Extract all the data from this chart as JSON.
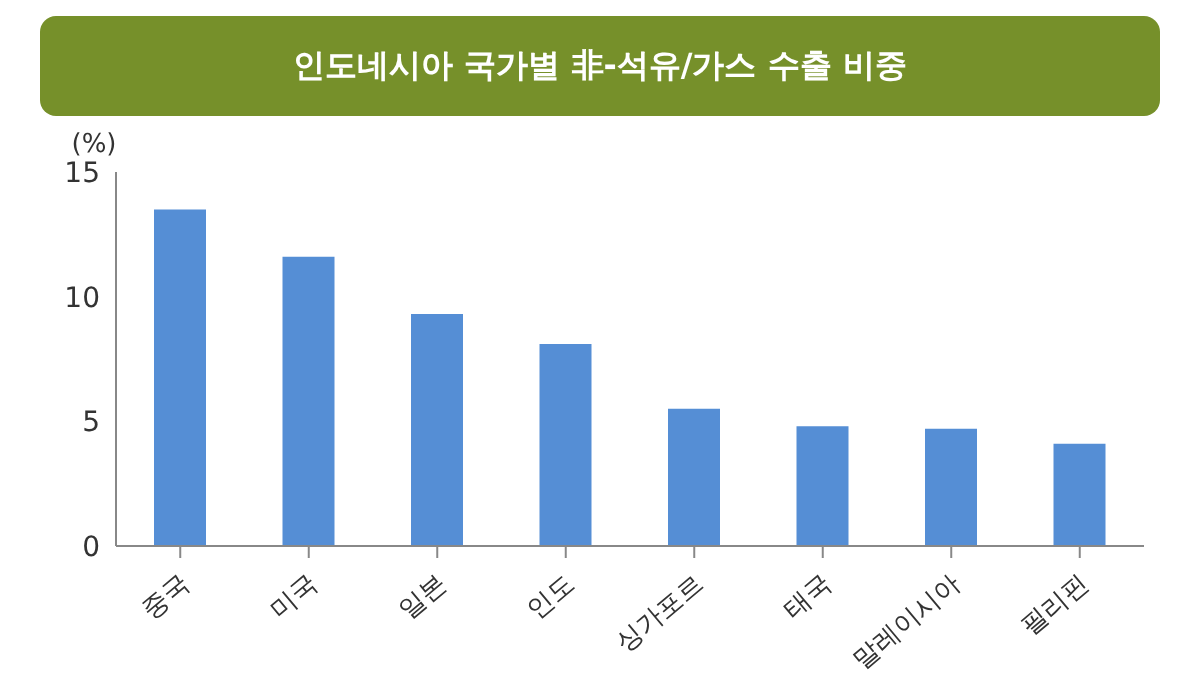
{
  "chart_data": {
    "type": "bar",
    "title": "인도네시아 국가별 非-석유/가스 수출 비중",
    "ylabel": "(%)",
    "categories": [
      "중국",
      "미국",
      "일본",
      "인도",
      "싱가포르",
      "태국",
      "말레이시아",
      "필리핀"
    ],
    "values": [
      13.5,
      11.6,
      9.3,
      8.1,
      5.5,
      4.8,
      4.7,
      4.1
    ],
    "color": "#558ed5",
    "ylim": [
      0,
      15
    ],
    "yticks": [
      0,
      5,
      10,
      15
    ],
    "grid": false,
    "legend": false
  }
}
